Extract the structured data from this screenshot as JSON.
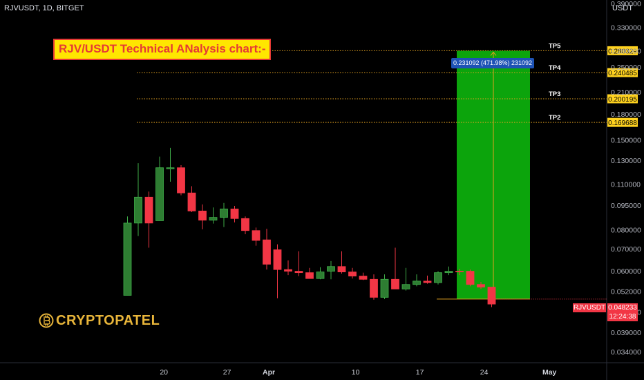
{
  "header": {
    "symbol_title": "RJVUSDT, 1D, BITGET"
  },
  "banner": {
    "text": "RJV/USDT Technical ANalysis chart:-"
  },
  "axis": {
    "unit_label": "USDT"
  },
  "logo": {
    "text": "CRYPTOPATEL"
  },
  "colors": {
    "up": "#2e7d32",
    "down": "#f23645",
    "target_zone": "#0ca40c",
    "level_line": "#e0a020",
    "measure_bg": "#1e53b5"
  },
  "chart_data": {
    "type": "candlestick",
    "y_scale": "log",
    "ylim": [
      0.0318,
      0.4
    ],
    "y_ticks": [
      "0.390000",
      "0.330000",
      "0.280000",
      "0.250000",
      "0.210000",
      "0.180000",
      "0.150000",
      "0.130000",
      "0.110000",
      "0.095000",
      "0.080000",
      "0.070000",
      "0.060000",
      "0.052000",
      "0.045000",
      "0.039000",
      "0.034000"
    ],
    "x_ticks": [
      "20",
      "27",
      "Apr",
      "10",
      "17",
      "24",
      "May"
    ],
    "candles": [
      {
        "o": 0.0505,
        "h": 0.0878,
        "l": 0.0505,
        "c": 0.0838
      },
      {
        "o": 0.0838,
        "h": 0.1275,
        "l": 0.0765,
        "c": 0.1005
      },
      {
        "o": 0.1005,
        "h": 0.1045,
        "l": 0.0705,
        "c": 0.0838
      },
      {
        "o": 0.0852,
        "h": 0.1335,
        "l": 0.0852,
        "c": 0.1235
      },
      {
        "o": 0.1225,
        "h": 0.142,
        "l": 0.112,
        "c": 0.1235
      },
      {
        "o": 0.1235,
        "h": 0.1258,
        "l": 0.1018,
        "c": 0.1035
      },
      {
        "o": 0.1035,
        "h": 0.1085,
        "l": 0.0905,
        "c": 0.0912
      },
      {
        "o": 0.0912,
        "h": 0.0955,
        "l": 0.0802,
        "c": 0.0855
      },
      {
        "o": 0.0855,
        "h": 0.0935,
        "l": 0.0835,
        "c": 0.0872
      },
      {
        "o": 0.0872,
        "h": 0.0965,
        "l": 0.0815,
        "c": 0.0925
      },
      {
        "o": 0.0925,
        "h": 0.0945,
        "l": 0.0842,
        "c": 0.0865
      },
      {
        "o": 0.0865,
        "h": 0.0878,
        "l": 0.0775,
        "c": 0.0795
      },
      {
        "o": 0.0795,
        "h": 0.0812,
        "l": 0.0715,
        "c": 0.0742
      },
      {
        "o": 0.0745,
        "h": 0.0805,
        "l": 0.0605,
        "c": 0.0628
      },
      {
        "o": 0.0695,
        "h": 0.0722,
        "l": 0.0495,
        "c": 0.0605
      },
      {
        "o": 0.0605,
        "h": 0.0645,
        "l": 0.0582,
        "c": 0.0598
      },
      {
        "o": 0.0598,
        "h": 0.0688,
        "l": 0.0578,
        "c": 0.0592
      },
      {
        "o": 0.0592,
        "h": 0.0612,
        "l": 0.0568,
        "c": 0.0568
      },
      {
        "o": 0.0568,
        "h": 0.0615,
        "l": 0.0565,
        "c": 0.0595
      },
      {
        "o": 0.0598,
        "h": 0.0642,
        "l": 0.0565,
        "c": 0.0618
      },
      {
        "o": 0.0618,
        "h": 0.0688,
        "l": 0.0588,
        "c": 0.0595
      },
      {
        "o": 0.0595,
        "h": 0.0612,
        "l": 0.0568,
        "c": 0.0578
      },
      {
        "o": 0.0578,
        "h": 0.0592,
        "l": 0.0562,
        "c": 0.0565
      },
      {
        "o": 0.0565,
        "h": 0.0585,
        "l": 0.049,
        "c": 0.0498
      },
      {
        "o": 0.0498,
        "h": 0.0585,
        "l": 0.0492,
        "c": 0.0565
      },
      {
        "o": 0.0565,
        "h": 0.0705,
        "l": 0.0528,
        "c": 0.0528
      },
      {
        "o": 0.0528,
        "h": 0.0612,
        "l": 0.0522,
        "c": 0.0545
      },
      {
        "o": 0.0545,
        "h": 0.0585,
        "l": 0.0538,
        "c": 0.0558
      },
      {
        "o": 0.0558,
        "h": 0.058,
        "l": 0.0548,
        "c": 0.0552
      },
      {
        "o": 0.0552,
        "h": 0.0598,
        "l": 0.0545,
        "c": 0.0592
      },
      {
        "o": 0.0592,
        "h": 0.0618,
        "l": 0.0582,
        "c": 0.0598
      },
      {
        "o": 0.0598,
        "h": 0.0608,
        "l": 0.0582,
        "c": 0.0595
      },
      {
        "o": 0.0598,
        "h": 0.0605,
        "l": 0.0538,
        "c": 0.0545
      },
      {
        "o": 0.0545,
        "h": 0.0555,
        "l": 0.0528,
        "c": 0.0535
      },
      {
        "o": 0.0535,
        "h": 0.0535,
        "l": 0.0465,
        "c": 0.0475
      }
    ],
    "levels": [
      {
        "name": "TP5",
        "value": 0.280329,
        "label": "0.280329"
      },
      {
        "name": "TP4",
        "value": 0.240485,
        "label": "0.240485"
      },
      {
        "name": "TP3",
        "value": 0.200195,
        "label": "0.200195"
      },
      {
        "name": "TP2",
        "value": 0.169688,
        "label": "0.169688"
      }
    ],
    "target_zone": {
      "from": 0.04919,
      "to": 0.280329
    },
    "measure_label": "0.231092 (471.98%) 231092",
    "current_price": {
      "symbol": "RJVUSDT",
      "value": "0.048233",
      "countdown": "12:24:38",
      "y": 0.04919
    }
  }
}
